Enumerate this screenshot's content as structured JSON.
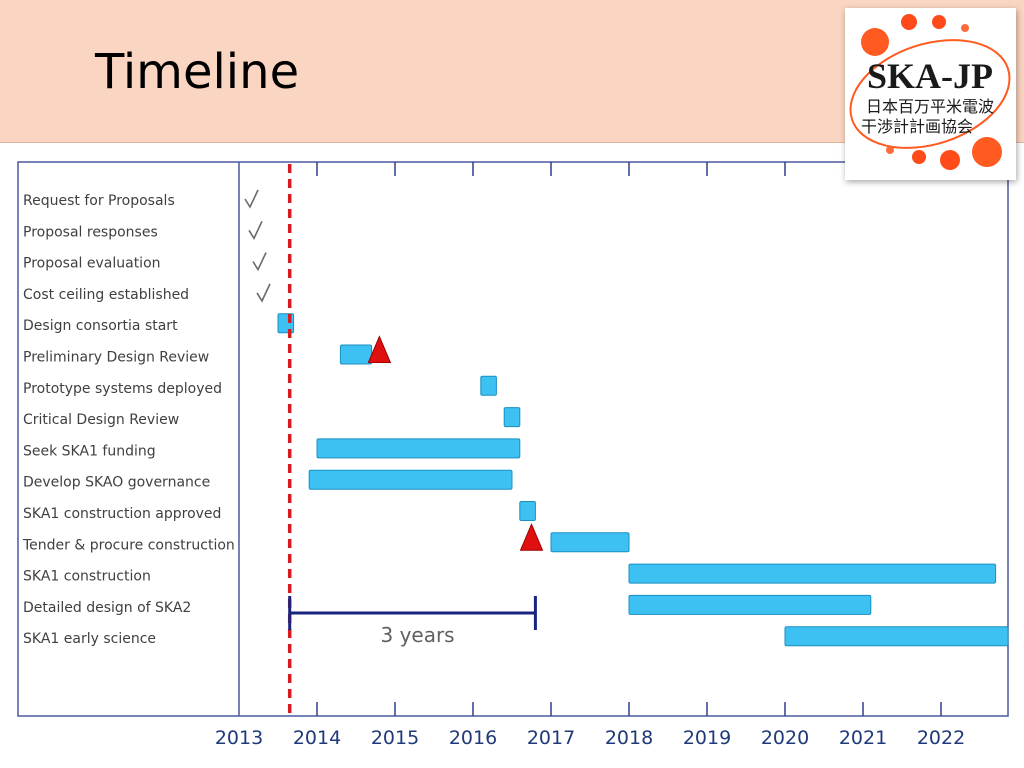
{
  "slide": {
    "title": "Timeline"
  },
  "logo": {
    "name": "SKA-JP",
    "line1": "日本百万平米電波",
    "line2": "干渉計計画協会"
  },
  "colors": {
    "bar_fill": "#3dc0f2",
    "bar_stroke": "#1b8fc2",
    "milestone": "#e01010",
    "today_line": "#d71920",
    "duration_bracket": "#1a237e",
    "axis": "#2e3f8f",
    "title_band": "#fad6c2"
  },
  "chart_data": {
    "type": "gantt",
    "x_axis": {
      "ticks": [
        2013,
        2014,
        2015,
        2016,
        2017,
        2018,
        2019,
        2020,
        2021,
        2022
      ],
      "range": [
        2013,
        2023.0
      ]
    },
    "current_date_marker": 2013.65,
    "tasks": [
      {
        "name": "Request for Proposals",
        "status": "done"
      },
      {
        "name": "Proposal responses",
        "status": "done"
      },
      {
        "name": "Proposal evaluation",
        "status": "done"
      },
      {
        "name": "Cost ceiling established",
        "status": "done"
      },
      {
        "name": "Design consortia start",
        "bars": [
          [
            2013.5,
            2013.7
          ]
        ]
      },
      {
        "name": "Preliminary Design Review",
        "bars": [
          [
            2014.3,
            2014.7
          ]
        ],
        "milestone": 2014.8
      },
      {
        "name": "Prototype systems deployed",
        "bars": [
          [
            2016.1,
            2016.3
          ]
        ]
      },
      {
        "name": "Critical Design Review",
        "bars": [
          [
            2016.4,
            2016.6
          ]
        ]
      },
      {
        "name": "Seek SKA1 funding",
        "bars": [
          [
            2014.0,
            2016.6
          ]
        ]
      },
      {
        "name": "Develop SKAO governance",
        "bars": [
          [
            2013.9,
            2016.5
          ]
        ]
      },
      {
        "name": "SKA1 construction approved",
        "bars": [
          [
            2016.6,
            2016.8
          ]
        ]
      },
      {
        "name": "Tender & procure construction",
        "bars": [
          [
            2017.0,
            2018.0
          ]
        ],
        "milestone": 2016.75
      },
      {
        "name": "SKA1 construction",
        "bars": [
          [
            2018.0,
            2022.7
          ]
        ]
      },
      {
        "name": "Detailed design of SKA2",
        "bars": [
          [
            2018.0,
            2021.1
          ]
        ]
      },
      {
        "name": "SKA1 early science",
        "bars": [
          [
            2020.0,
            2023.0
          ]
        ]
      }
    ],
    "duration_annotation": {
      "label": "3 years",
      "from": 2013.65,
      "to": 2016.8
    }
  }
}
